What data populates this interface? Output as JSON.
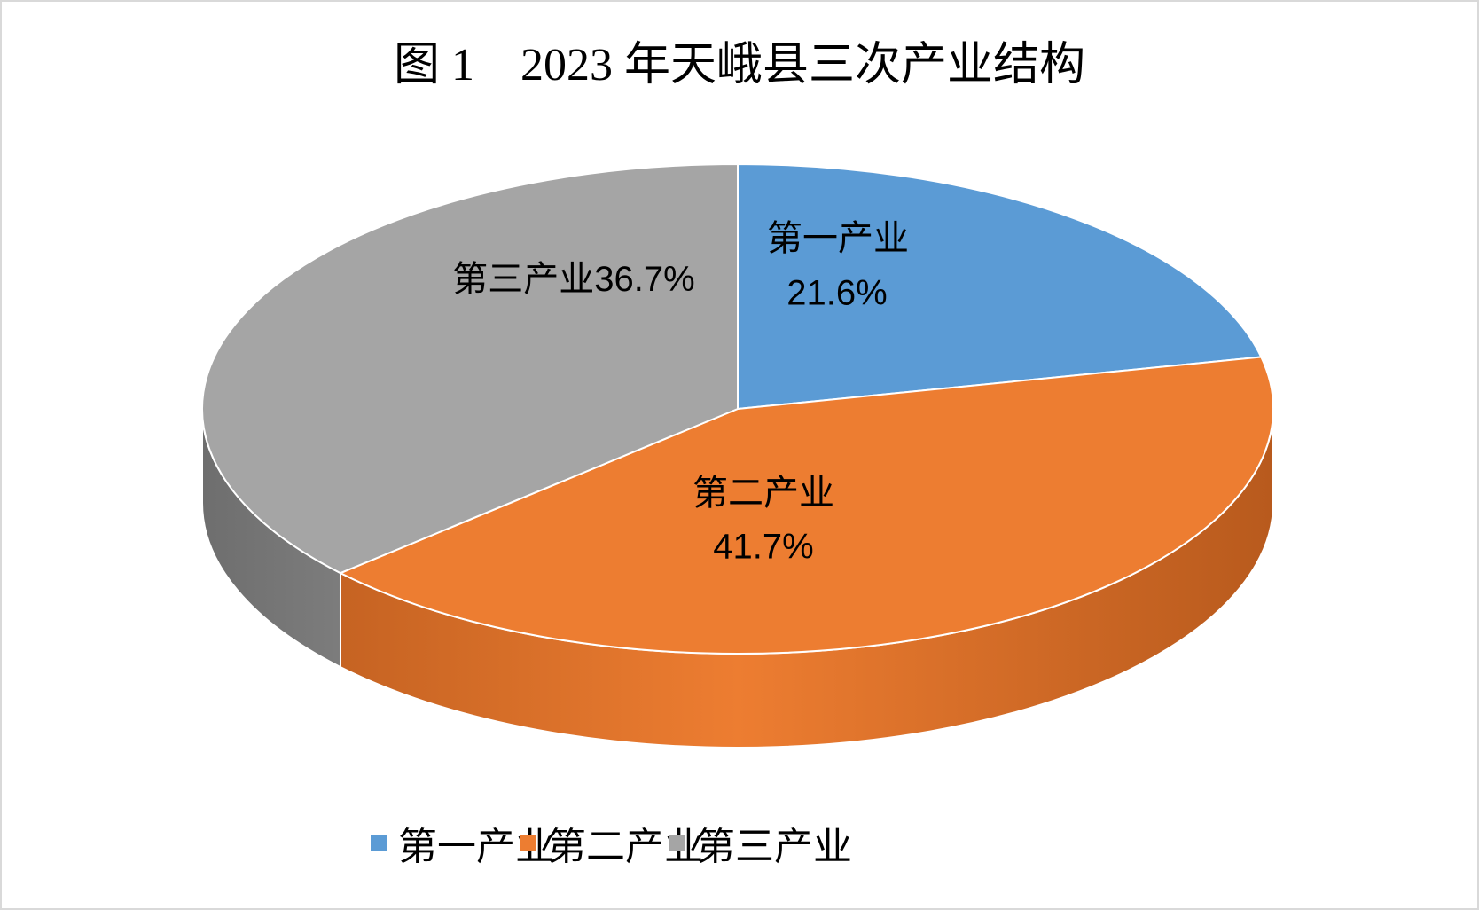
{
  "chart_data": {
    "type": "pie",
    "style": "3d",
    "title": "图 1　2023 年天峨县三次产业结构",
    "categories": [
      "第一产业",
      "第二产业",
      "第三产业"
    ],
    "values": [
      21.6,
      41.7,
      36.7
    ],
    "value_labels": [
      "21.6%",
      "41.7%",
      "36.7%"
    ],
    "colors": [
      "#5B9BD5",
      "#ED7D31",
      "#A5A5A5"
    ],
    "side_colors": [
      "#3F78AE",
      "#B85A1D",
      "#6E6E6E"
    ],
    "legend_position": "bottom"
  }
}
